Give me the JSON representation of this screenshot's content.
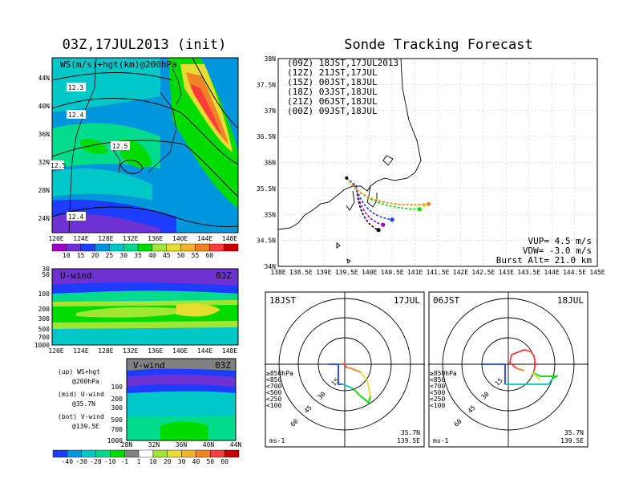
{
  "left_title": "03Z,17JUL2013 (init)",
  "right_title": "Sonde Tracking Forecast",
  "colors": {
    "bg": "#ffffff",
    "land_fill": "#ffffff",
    "ink": "#000000"
  },
  "chart_data": [
    {
      "type": "heatmap",
      "panel": "top-left map",
      "title": "WS(m/s)+hgt(km)@200hPa",
      "x_ticks": [
        "120E",
        "124E",
        "128E",
        "132E",
        "136E",
        "140E",
        "144E",
        "148E"
      ],
      "y_ticks": [
        "24N",
        "28N",
        "32N",
        "36N",
        "40N",
        "44N"
      ],
      "contour_labels": [
        "12.3",
        "12.4",
        "12.5",
        "12.5",
        "12.4"
      ],
      "colorbar": {
        "ticks": [
          "10",
          "15",
          "20",
          "25",
          "30",
          "35",
          "40",
          "45",
          "50",
          "55",
          "60"
        ],
        "colors": [
          "#a000c8",
          "#6e32d2",
          "#1e3cff",
          "#0096dc",
          "#00c8c8",
          "#00dc8c",
          "#00dc00",
          "#a0e632",
          "#e6dc32",
          "#f0b428",
          "#f08228",
          "#fa3c3c",
          "#c80000"
        ]
      }
    },
    {
      "type": "heatmap",
      "panel": "U-wind cross section",
      "title": "U-wind",
      "time_label": "03Z",
      "x_ticks": [
        "120E",
        "124E",
        "128E",
        "132E",
        "136E",
        "140E",
        "144E",
        "148E"
      ],
      "y_ticks": [
        "30",
        "50",
        "100",
        "200",
        "300",
        "500",
        "700",
        "1000"
      ]
    },
    {
      "type": "heatmap",
      "panel": "V-wind cross section",
      "title": "V-wind",
      "time_label": "03Z",
      "x_ticks": [
        "28N",
        "32N",
        "36N",
        "40N",
        "44N"
      ],
      "y_ticks": [
        "100",
        "200",
        "300",
        "500",
        "700",
        "1000"
      ],
      "colorbar": {
        "ticks": [
          "-40",
          "-30",
          "-20",
          "-10",
          "-1",
          "1",
          "10",
          "20",
          "30",
          "40",
          "50",
          "60"
        ],
        "colors": [
          "#1e3cff",
          "#0096dc",
          "#00c8c8",
          "#00dc8c",
          "#00dc00",
          "#808080",
          "#ffffff",
          "#a0e632",
          "#e6dc32",
          "#f0b428",
          "#f08228",
          "#fa3c3c",
          "#c80000"
        ]
      }
    },
    {
      "type": "line",
      "panel": "sonde tracking map",
      "x_ticks": [
        "138E",
        "138.5E",
        "139E",
        "139.5E",
        "140E",
        "140.5E",
        "141E",
        "141.5E",
        "142E",
        "142.5E",
        "143E",
        "143.5E",
        "144E",
        "144.5E",
        "145E"
      ],
      "y_ticks": [
        "34N",
        "34.5N",
        "35N",
        "35.5N",
        "36N",
        "36.5N",
        "37N",
        "37.5N",
        "38N"
      ],
      "xlim": [
        138,
        145
      ],
      "ylim": [
        34,
        38
      ],
      "launch": {
        "lon": 139.5,
        "lat": 35.7
      },
      "series": [
        {
          "name": "(09Z) 18JST,17JUL2013",
          "color": "#000000",
          "end": [
            140.2,
            34.7
          ]
        },
        {
          "name": "(12Z) 21JST,17JUL",
          "color": "#a000c8",
          "end": [
            140.3,
            34.8
          ]
        },
        {
          "name": "(15Z) 00JST,18JUL",
          "color": "#1e3cff",
          "end": [
            140.5,
            34.9
          ]
        },
        {
          "name": "(18Z) 03JST,18JUL",
          "color": "#00dc00",
          "end": [
            141.1,
            35.1
          ]
        },
        {
          "name": "(21Z) 06JST,18JUL",
          "color": "#e6dc32",
          "end": [
            141.2,
            35.18
          ]
        },
        {
          "name": "(00Z) 09JST,18JUL",
          "color": "#f08228",
          "end": [
            141.3,
            35.2
          ]
        }
      ],
      "info": [
        "VUP= 4.5 m/s",
        "VDW= -3.0 m/s",
        "Burst Alt= 21.0 km"
      ]
    },
    {
      "type": "line",
      "panel": "hodograph 18JST",
      "time": "18JST",
      "date": "17JUL",
      "rings": [
        "15",
        "30",
        "45",
        "60"
      ],
      "unit": "ms-1",
      "location": [
        "35.7N",
        "139.5E"
      ],
      "levels": [
        {
          "label": "≥850hPa",
          "color": "#fa3c3c"
        },
        {
          "label": "<850",
          "color": "#f08228"
        },
        {
          "label": "<700",
          "color": "#e6dc32"
        },
        {
          "label": "<500",
          "color": "#00dc00"
        },
        {
          "label": "<250",
          "color": "#00c8c8"
        },
        {
          "label": "<100",
          "color": "#1e3cff"
        }
      ]
    },
    {
      "type": "line",
      "panel": "hodograph 06JST",
      "time": "06JST",
      "date": "18JUL",
      "rings": [
        "15",
        "30",
        "45",
        "60"
      ],
      "unit": "ms-1",
      "location": [
        "35.7N",
        "139.5E"
      ],
      "levels": [
        {
          "label": "≥850hPa",
          "color": "#fa3c3c"
        },
        {
          "label": "<850",
          "color": "#f08228"
        },
        {
          "label": "<700",
          "color": "#e6dc32"
        },
        {
          "label": "<500",
          "color": "#00dc00"
        },
        {
          "label": "<250",
          "color": "#00c8c8"
        },
        {
          "label": "<100",
          "color": "#1e3cff"
        }
      ]
    }
  ],
  "legend_notes": [
    {
      "label": "(up) WS+hgt",
      "sub": "@200hPa"
    },
    {
      "label": "(mid) U-wind",
      "sub": "@35.7N"
    },
    {
      "label": "(bot) V-wind",
      "sub": "@139.5E"
    }
  ]
}
